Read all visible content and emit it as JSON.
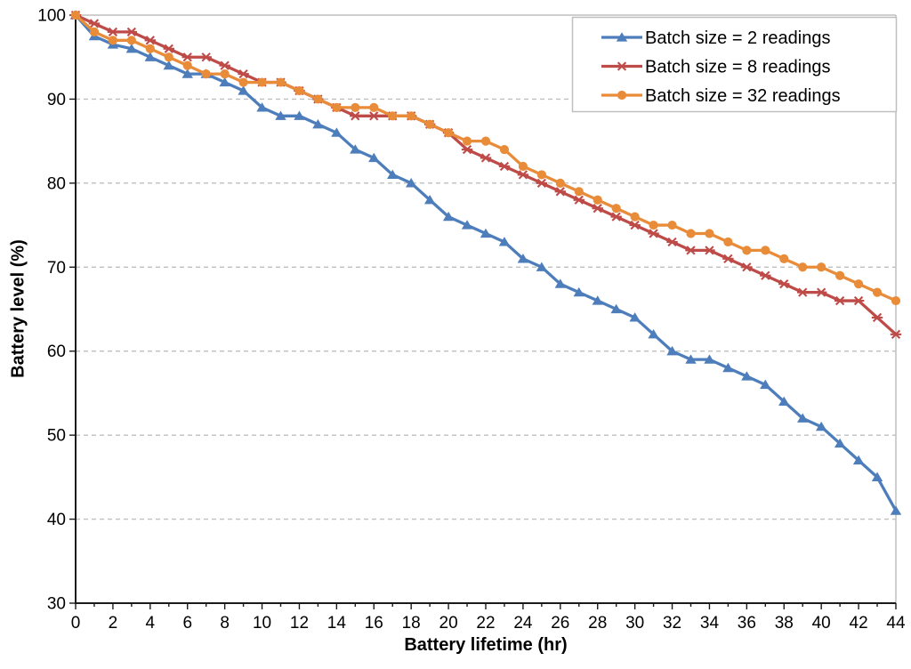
{
  "chart_data": {
    "type": "line",
    "title": "",
    "xlabel": "Battery lifetime (hr)",
    "ylabel": "Battery level (%)",
    "xlim": [
      0,
      44
    ],
    "ylim": [
      30,
      100
    ],
    "x": [
      0,
      1,
      2,
      3,
      4,
      5,
      6,
      7,
      8,
      9,
      10,
      11,
      12,
      13,
      14,
      15,
      16,
      17,
      18,
      19,
      20,
      21,
      22,
      23,
      24,
      25,
      26,
      27,
      28,
      29,
      30,
      31,
      32,
      33,
      34,
      35,
      36,
      37,
      38,
      39,
      40,
      41,
      42,
      43,
      44
    ],
    "x_tick_labels": [
      "0",
      "2",
      "4",
      "6",
      "8",
      "10",
      "12",
      "14",
      "16",
      "18",
      "20",
      "22",
      "24",
      "26",
      "28",
      "30",
      "32",
      "34",
      "36",
      "38",
      "40",
      "42",
      "44"
    ],
    "y_tick_labels": [
      "30",
      "40",
      "50",
      "60",
      "70",
      "80",
      "90",
      "100"
    ],
    "x_major_tick_step": 2,
    "x_minor_tick_step": 1,
    "y_tick_step": 10,
    "grid": "horizontal-dashed",
    "gridline_values": [
      40,
      50,
      60,
      70,
      80,
      90
    ],
    "legend_position": "top-right",
    "series": [
      {
        "name": "Batch size = 2 readings",
        "marker": "triangle",
        "color": "#4D7EBB",
        "values": [
          100,
          97.5,
          96.5,
          96,
          95,
          94,
          93,
          93,
          92,
          91,
          89,
          88,
          88,
          87,
          86,
          84,
          83,
          81,
          80,
          78,
          76,
          75,
          74,
          73,
          71,
          70,
          68,
          67,
          66,
          65,
          64,
          62,
          60,
          59,
          59,
          58,
          57,
          56,
          54,
          52,
          51,
          49,
          47,
          45,
          41
        ]
      },
      {
        "name": "Batch size = 8 readings",
        "marker": "star",
        "color": "#BE4B48",
        "values": [
          100,
          99,
          98,
          98,
          97,
          96,
          95,
          95,
          94,
          93,
          92,
          92,
          91,
          90,
          89,
          88,
          88,
          88,
          88,
          87,
          86,
          84,
          83,
          82,
          81,
          80,
          79,
          78,
          77,
          76,
          75,
          74,
          73,
          72,
          72,
          71,
          70,
          69,
          68,
          67,
          67,
          66,
          66,
          64,
          62
        ]
      },
      {
        "name": "Batch size = 32 readings",
        "marker": "circle",
        "color": "#E98C3A",
        "values": [
          100,
          98,
          97,
          97,
          96,
          95,
          94,
          93,
          93,
          92,
          92,
          92,
          91,
          90,
          89,
          89,
          89,
          88,
          88,
          87,
          86,
          85,
          85,
          84,
          82,
          81,
          80,
          79,
          78,
          77,
          76,
          75,
          75,
          74,
          74,
          73,
          72,
          72,
          71,
          70,
          70,
          69,
          68,
          67,
          66
        ]
      }
    ],
    "colors": {
      "axis": "#1a1a1a",
      "gridline": "#bfbfbf",
      "plot_border": "#bfbfbf",
      "text": "#000000",
      "background": "#ffffff",
      "legend_border": "#bfbfbf",
      "legend_fill": "#ffffff"
    }
  }
}
